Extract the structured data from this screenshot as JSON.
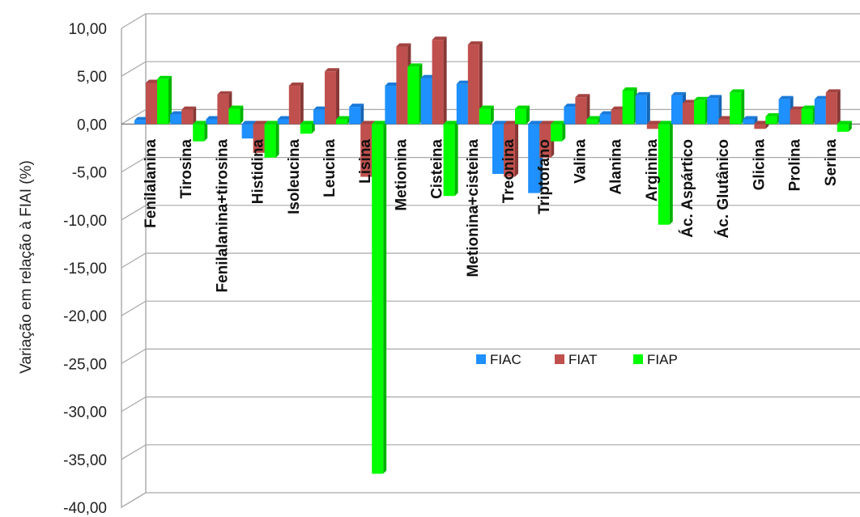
{
  "chart_data": {
    "type": "bar",
    "ylabel": "Variação em relação à FIAI (%)",
    "ylim": [
      -40,
      10
    ],
    "yticks": [
      "10,00",
      "5,00",
      "0,00",
      "-5,00",
      "-10,00",
      "-15,00",
      "-20,00",
      "-25,00",
      "-30,00",
      "-35,00",
      "-40,00"
    ],
    "grid": true,
    "legend_position": "center",
    "categories": [
      "Fenilalanina",
      "Tirosina",
      "Fenilalanina+tirosina",
      "Histidina",
      "Isoleucina",
      "Leucina",
      "Lisina",
      "Metionina",
      "Cisteina",
      "Metionina+cisteina",
      "Treonina",
      "Triptofano",
      "Valina",
      "Alanina",
      "Arginina",
      "Ác. Aspártico",
      "Ác. Glutânico",
      "Glicina",
      "Prolina",
      "Serina"
    ],
    "series": [
      {
        "name": "FIAC",
        "color": "#1e90ff",
        "values": [
          0.4,
          1.0,
          0.5,
          -1.5,
          0.5,
          1.5,
          1.8,
          4.0,
          4.8,
          4.2,
          -5.2,
          -7.2,
          1.8,
          1.0,
          3.0,
          3.0,
          2.7,
          0.5,
          2.6,
          2.6
        ]
      },
      {
        "name": "FIAT",
        "color": "#c0504d",
        "values": [
          4.3,
          1.5,
          3.1,
          -3.0,
          4.0,
          5.5,
          -5.5,
          8.1,
          8.8,
          8.3,
          -5.5,
          -3.5,
          2.8,
          1.5,
          -0.5,
          2.2,
          0.5,
          -0.5,
          1.5,
          3.3
        ]
      },
      {
        "name": "FIAP",
        "color": "#00ff00",
        "values": [
          4.7,
          -1.8,
          1.6,
          -3.5,
          -1.0,
          0.5,
          -36.5,
          6.0,
          -7.5,
          1.6,
          1.6,
          -1.8,
          0.5,
          3.5,
          -10.5,
          2.5,
          3.3,
          0.8,
          1.6,
          -0.8
        ]
      }
    ]
  }
}
